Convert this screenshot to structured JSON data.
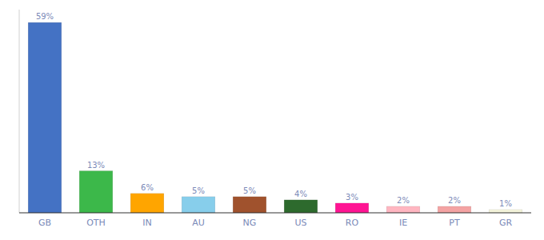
{
  "chart_data": {
    "type": "bar",
    "categories": [
      "GB",
      "OTH",
      "IN",
      "AU",
      "NG",
      "US",
      "RO",
      "IE",
      "PT",
      "GR"
    ],
    "values": [
      59,
      13,
      6,
      5,
      5,
      4,
      3,
      2,
      2,
      1
    ],
    "value_labels": [
      "59%",
      "13%",
      "6%",
      "5%",
      "5%",
      "4%",
      "3%",
      "2%",
      "2%",
      "1%"
    ],
    "data_labels": true,
    "colors": [
      "#4472C4",
      "#3CB84A",
      "#FFA500",
      "#87CEEB",
      "#A0522D",
      "#2D6A2D",
      "#FF1493",
      "#FFB6C1",
      "#F4A3A3",
      "#F5F5DC"
    ],
    "ylim": [
      0,
      63
    ],
    "tick_labels": "x",
    "grid": false
  }
}
